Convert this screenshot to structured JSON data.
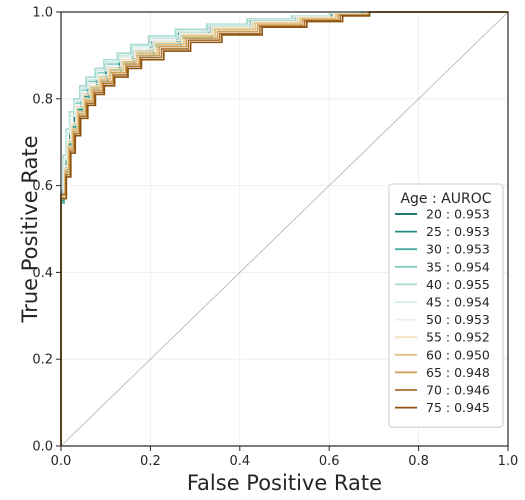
{
  "chart_data": {
    "type": "line",
    "title": "",
    "xlabel": "False Positive Rate",
    "ylabel": "True Positive Rate",
    "xlim": [
      0.0,
      1.0
    ],
    "ylim": [
      0.0,
      1.0
    ],
    "xticks": [
      "0.0",
      "0.2",
      "0.4",
      "0.6",
      "0.8",
      "1.0"
    ],
    "yticks": [
      "0.0",
      "0.2",
      "0.4",
      "0.6",
      "0.8",
      "1.0"
    ],
    "grid": true,
    "legend_position": "lower-right",
    "legend_title": "Age : AUROC",
    "diagonal": {
      "x": [
        0,
        1
      ],
      "y": [
        0,
        1
      ],
      "color": "#b0b0b0"
    },
    "series": [
      {
        "name": "20 : 0.953",
        "color": "#01665e",
        "x": [
          0,
          0,
          0.005,
          0.005,
          0.012,
          0.012,
          0.02,
          0.02,
          0.03,
          0.03,
          0.045,
          0.045,
          0.06,
          0.06,
          0.08,
          0.08,
          0.1,
          0.1,
          0.13,
          0.13,
          0.16,
          0.16,
          0.2,
          0.2,
          0.26,
          0.26,
          0.33,
          0.33,
          0.42,
          0.42,
          0.52,
          0.52,
          0.6,
          0.6,
          0.68,
          0.68,
          1.0
        ],
        "y": [
          0,
          0.57,
          0.57,
          0.64,
          0.64,
          0.7,
          0.7,
          0.74,
          0.74,
          0.78,
          0.78,
          0.81,
          0.81,
          0.83,
          0.83,
          0.85,
          0.85,
          0.87,
          0.87,
          0.89,
          0.89,
          0.91,
          0.91,
          0.93,
          0.93,
          0.95,
          0.95,
          0.97,
          0.97,
          0.98,
          0.98,
          0.99,
          0.99,
          0.995,
          0.995,
          1.0,
          1.0
        ]
      },
      {
        "name": "25 : 0.953",
        "color": "#238b82",
        "x": [
          0,
          0,
          0.006,
          0.006,
          0.013,
          0.013,
          0.021,
          0.021,
          0.032,
          0.032,
          0.047,
          0.047,
          0.062,
          0.062,
          0.082,
          0.082,
          0.103,
          0.103,
          0.133,
          0.133,
          0.163,
          0.163,
          0.205,
          0.205,
          0.265,
          0.265,
          0.335,
          0.335,
          0.425,
          0.425,
          0.525,
          0.525,
          0.605,
          0.605,
          0.675,
          0.675,
          1.0
        ],
        "y": [
          0,
          0.565,
          0.565,
          0.635,
          0.635,
          0.695,
          0.695,
          0.735,
          0.735,
          0.775,
          0.775,
          0.805,
          0.805,
          0.825,
          0.825,
          0.845,
          0.845,
          0.865,
          0.865,
          0.885,
          0.885,
          0.905,
          0.905,
          0.925,
          0.925,
          0.945,
          0.945,
          0.965,
          0.965,
          0.978,
          0.978,
          0.988,
          0.988,
          0.995,
          0.995,
          1.0,
          1.0
        ]
      },
      {
        "name": "30 : 0.953",
        "color": "#48ab9f",
        "x": [
          0,
          0,
          0.007,
          0.007,
          0.014,
          0.014,
          0.022,
          0.022,
          0.033,
          0.033,
          0.048,
          0.048,
          0.063,
          0.063,
          0.083,
          0.083,
          0.105,
          0.105,
          0.135,
          0.135,
          0.165,
          0.165,
          0.208,
          0.208,
          0.268,
          0.268,
          0.338,
          0.338,
          0.428,
          0.428,
          0.528,
          0.528,
          0.61,
          0.61,
          0.67,
          0.67,
          1.0
        ],
        "y": [
          0,
          0.56,
          0.56,
          0.63,
          0.63,
          0.69,
          0.69,
          0.73,
          0.73,
          0.77,
          0.77,
          0.8,
          0.8,
          0.82,
          0.82,
          0.84,
          0.84,
          0.86,
          0.86,
          0.88,
          0.88,
          0.9,
          0.9,
          0.92,
          0.92,
          0.94,
          0.94,
          0.96,
          0.96,
          0.976,
          0.976,
          0.987,
          0.987,
          0.995,
          0.995,
          1.0,
          1.0
        ]
      },
      {
        "name": "35 : 0.954",
        "color": "#80cdc1",
        "x": [
          0,
          0,
          0.006,
          0.006,
          0.012,
          0.012,
          0.02,
          0.02,
          0.03,
          0.03,
          0.044,
          0.044,
          0.058,
          0.058,
          0.078,
          0.078,
          0.098,
          0.098,
          0.128,
          0.128,
          0.158,
          0.158,
          0.198,
          0.198,
          0.258,
          0.258,
          0.328,
          0.328,
          0.418,
          0.418,
          0.518,
          0.518,
          0.6,
          0.6,
          0.67,
          0.67,
          1.0
        ],
        "y": [
          0,
          0.58,
          0.58,
          0.66,
          0.66,
          0.72,
          0.72,
          0.76,
          0.76,
          0.79,
          0.79,
          0.82,
          0.82,
          0.84,
          0.84,
          0.86,
          0.86,
          0.88,
          0.88,
          0.9,
          0.9,
          0.92,
          0.92,
          0.94,
          0.94,
          0.955,
          0.955,
          0.97,
          0.97,
          0.982,
          0.982,
          0.99,
          0.99,
          0.996,
          0.996,
          1.0,
          1.0
        ]
      },
      {
        "name": "40 : 0.955",
        "color": "#a8dcd3",
        "x": [
          0,
          0,
          0.005,
          0.005,
          0.011,
          0.011,
          0.019,
          0.019,
          0.029,
          0.029,
          0.042,
          0.042,
          0.056,
          0.056,
          0.076,
          0.076,
          0.096,
          0.096,
          0.126,
          0.126,
          0.156,
          0.156,
          0.196,
          0.196,
          0.256,
          0.256,
          0.326,
          0.326,
          0.416,
          0.416,
          0.516,
          0.516,
          0.6,
          0.6,
          0.67,
          0.67,
          1.0
        ],
        "y": [
          0,
          0.59,
          0.59,
          0.67,
          0.67,
          0.73,
          0.73,
          0.77,
          0.77,
          0.8,
          0.8,
          0.83,
          0.83,
          0.85,
          0.85,
          0.87,
          0.87,
          0.89,
          0.89,
          0.905,
          0.905,
          0.925,
          0.925,
          0.945,
          0.945,
          0.96,
          0.96,
          0.972,
          0.972,
          0.984,
          0.984,
          0.991,
          0.991,
          0.996,
          0.996,
          1.0,
          1.0
        ]
      },
      {
        "name": "45 : 0.954",
        "color": "#d4ece8",
        "x": [
          0,
          0,
          0.006,
          0.006,
          0.012,
          0.012,
          0.02,
          0.02,
          0.031,
          0.031,
          0.045,
          0.045,
          0.06,
          0.06,
          0.08,
          0.08,
          0.1,
          0.1,
          0.13,
          0.13,
          0.16,
          0.16,
          0.2,
          0.2,
          0.26,
          0.26,
          0.33,
          0.33,
          0.42,
          0.42,
          0.52,
          0.52,
          0.6,
          0.6,
          0.67,
          0.67,
          1.0
        ],
        "y": [
          0,
          0.58,
          0.58,
          0.66,
          0.66,
          0.72,
          0.72,
          0.76,
          0.76,
          0.795,
          0.795,
          0.825,
          0.825,
          0.845,
          0.845,
          0.865,
          0.865,
          0.885,
          0.885,
          0.9,
          0.9,
          0.92,
          0.92,
          0.94,
          0.94,
          0.955,
          0.955,
          0.97,
          0.97,
          0.982,
          0.982,
          0.99,
          0.99,
          0.996,
          0.996,
          1.0,
          1.0
        ]
      },
      {
        "name": "50 : 0.953",
        "color": "#eeeeec",
        "x": [
          0,
          0,
          0.007,
          0.007,
          0.014,
          0.014,
          0.022,
          0.022,
          0.033,
          0.033,
          0.048,
          0.048,
          0.063,
          0.063,
          0.083,
          0.083,
          0.104,
          0.104,
          0.134,
          0.134,
          0.164,
          0.164,
          0.206,
          0.206,
          0.266,
          0.266,
          0.336,
          0.336,
          0.426,
          0.426,
          0.526,
          0.526,
          0.61,
          0.61,
          0.68,
          0.68,
          1.0
        ],
        "y": [
          0,
          0.57,
          0.57,
          0.645,
          0.645,
          0.705,
          0.705,
          0.745,
          0.745,
          0.785,
          0.785,
          0.815,
          0.815,
          0.835,
          0.835,
          0.855,
          0.855,
          0.875,
          0.875,
          0.895,
          0.895,
          0.915,
          0.915,
          0.935,
          0.935,
          0.95,
          0.95,
          0.965,
          0.965,
          0.978,
          0.978,
          0.988,
          0.988,
          0.995,
          0.995,
          1.0,
          1.0
        ]
      },
      {
        "name": "55 : 0.952",
        "color": "#f3e3bd",
        "x": [
          0,
          0,
          0.008,
          0.008,
          0.015,
          0.015,
          0.024,
          0.024,
          0.035,
          0.035,
          0.05,
          0.05,
          0.065,
          0.065,
          0.085,
          0.085,
          0.107,
          0.107,
          0.137,
          0.137,
          0.167,
          0.167,
          0.21,
          0.21,
          0.27,
          0.27,
          0.34,
          0.34,
          0.43,
          0.43,
          0.53,
          0.53,
          0.61,
          0.61,
          0.68,
          0.68,
          1.0
        ],
        "y": [
          0,
          0.57,
          0.57,
          0.64,
          0.64,
          0.7,
          0.7,
          0.74,
          0.74,
          0.78,
          0.78,
          0.81,
          0.81,
          0.83,
          0.83,
          0.85,
          0.85,
          0.87,
          0.87,
          0.89,
          0.89,
          0.91,
          0.91,
          0.93,
          0.93,
          0.948,
          0.948,
          0.963,
          0.963,
          0.976,
          0.976,
          0.987,
          0.987,
          0.995,
          0.995,
          1.0,
          1.0
        ]
      },
      {
        "name": "60 : 0.950",
        "color": "#e3c182",
        "x": [
          0,
          0,
          0.009,
          0.009,
          0.017,
          0.017,
          0.026,
          0.026,
          0.038,
          0.038,
          0.053,
          0.053,
          0.068,
          0.068,
          0.088,
          0.088,
          0.11,
          0.11,
          0.14,
          0.14,
          0.17,
          0.17,
          0.215,
          0.215,
          0.275,
          0.275,
          0.345,
          0.345,
          0.435,
          0.435,
          0.535,
          0.535,
          0.615,
          0.615,
          0.685,
          0.685,
          1.0
        ],
        "y": [
          0,
          0.575,
          0.575,
          0.635,
          0.635,
          0.69,
          0.69,
          0.73,
          0.73,
          0.77,
          0.77,
          0.8,
          0.8,
          0.825,
          0.825,
          0.845,
          0.845,
          0.865,
          0.865,
          0.885,
          0.885,
          0.905,
          0.905,
          0.925,
          0.925,
          0.945,
          0.945,
          0.96,
          0.96,
          0.974,
          0.974,
          0.985,
          0.985,
          0.994,
          0.994,
          1.0,
          1.0
        ]
      },
      {
        "name": "65 : 0.948",
        "color": "#cf9f55",
        "x": [
          0,
          0,
          0.01,
          0.01,
          0.019,
          0.019,
          0.028,
          0.028,
          0.04,
          0.04,
          0.056,
          0.056,
          0.072,
          0.072,
          0.092,
          0.092,
          0.115,
          0.115,
          0.145,
          0.145,
          0.175,
          0.175,
          0.22,
          0.22,
          0.28,
          0.28,
          0.35,
          0.35,
          0.44,
          0.44,
          0.54,
          0.54,
          0.62,
          0.62,
          0.69,
          0.69,
          1.0
        ],
        "y": [
          0,
          0.58,
          0.58,
          0.63,
          0.63,
          0.685,
          0.685,
          0.725,
          0.725,
          0.765,
          0.765,
          0.795,
          0.795,
          0.82,
          0.82,
          0.84,
          0.84,
          0.86,
          0.86,
          0.88,
          0.88,
          0.9,
          0.9,
          0.92,
          0.92,
          0.94,
          0.94,
          0.955,
          0.955,
          0.97,
          0.97,
          0.982,
          0.982,
          0.993,
          0.993,
          1.0,
          1.0
        ]
      },
      {
        "name": "70 : 0.946",
        "color": "#a86f2c",
        "x": [
          0,
          0,
          0.011,
          0.011,
          0.021,
          0.021,
          0.03,
          0.03,
          0.042,
          0.042,
          0.058,
          0.058,
          0.075,
          0.075,
          0.095,
          0.095,
          0.118,
          0.118,
          0.148,
          0.148,
          0.178,
          0.178,
          0.225,
          0.225,
          0.285,
          0.285,
          0.355,
          0.355,
          0.445,
          0.445,
          0.545,
          0.545,
          0.625,
          0.625,
          0.69,
          0.69,
          1.0
        ],
        "y": [
          0,
          0.58,
          0.58,
          0.625,
          0.625,
          0.68,
          0.68,
          0.72,
          0.72,
          0.76,
          0.76,
          0.79,
          0.79,
          0.815,
          0.815,
          0.835,
          0.835,
          0.855,
          0.855,
          0.875,
          0.875,
          0.895,
          0.895,
          0.915,
          0.915,
          0.935,
          0.935,
          0.95,
          0.95,
          0.967,
          0.967,
          0.98,
          0.98,
          0.992,
          0.992,
          1.0,
          1.0
        ]
      },
      {
        "name": "75 : 0.945",
        "color": "#8c510a",
        "x": [
          0,
          0,
          0.012,
          0.012,
          0.022,
          0.022,
          0.032,
          0.032,
          0.044,
          0.044,
          0.06,
          0.06,
          0.077,
          0.077,
          0.097,
          0.097,
          0.12,
          0.12,
          0.15,
          0.15,
          0.18,
          0.18,
          0.23,
          0.23,
          0.29,
          0.29,
          0.36,
          0.36,
          0.45,
          0.45,
          0.55,
          0.55,
          0.63,
          0.63,
          0.69,
          0.69,
          1.0
        ],
        "y": [
          0,
          0.57,
          0.57,
          0.62,
          0.62,
          0.675,
          0.675,
          0.715,
          0.715,
          0.755,
          0.755,
          0.785,
          0.785,
          0.81,
          0.81,
          0.83,
          0.83,
          0.85,
          0.85,
          0.87,
          0.87,
          0.89,
          0.89,
          0.91,
          0.91,
          0.93,
          0.93,
          0.947,
          0.947,
          0.965,
          0.965,
          0.978,
          0.978,
          0.991,
          0.991,
          1.0,
          1.0
        ]
      }
    ]
  }
}
